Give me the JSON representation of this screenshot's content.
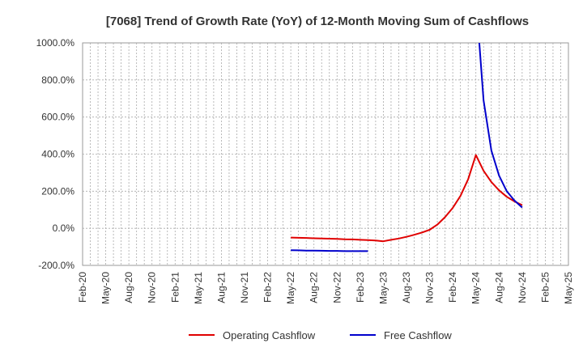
{
  "chart_data": {
    "type": "line",
    "title": "[7068]  Trend of Growth Rate (YoY) of 12-Month Moving Sum of Cashflows",
    "xlabel": "",
    "ylabel": "",
    "ylim": [
      -200,
      1000
    ],
    "y_ticks": [
      "1000.0%",
      "800.0%",
      "600.0%",
      "400.0%",
      "200.0%",
      "0.0%",
      "-200.0%"
    ],
    "x_ticks": [
      "Feb-20",
      "May-20",
      "Aug-20",
      "Nov-20",
      "Feb-21",
      "May-21",
      "Aug-21",
      "Nov-21",
      "Feb-22",
      "May-22",
      "Aug-22",
      "Nov-22",
      "Feb-23",
      "May-23",
      "Aug-23",
      "Nov-23",
      "Feb-24",
      "May-24",
      "Aug-24",
      "Nov-24",
      "Feb-25",
      "May-25"
    ],
    "grid": true,
    "legend_position": "bottom",
    "series": [
      {
        "name": "Operating Cashflow",
        "color": "#e00000",
        "x": [
          "May-22",
          "Jun-22",
          "Jul-22",
          "Aug-22",
          "Sep-22",
          "Oct-22",
          "Nov-22",
          "Dec-22",
          "Jan-23",
          "Feb-23",
          "Mar-23",
          "Apr-23",
          "May-23",
          "Jun-23",
          "Jul-23",
          "Aug-23",
          "Sep-23",
          "Oct-23",
          "Nov-23",
          "Dec-23",
          "Jan-24",
          "Feb-24",
          "Mar-24",
          "Apr-24",
          "May-24",
          "Jun-24",
          "Jul-24",
          "Aug-24",
          "Sep-24",
          "Oct-24",
          "Nov-24"
        ],
        "values": [
          -50,
          -51,
          -52,
          -54,
          -55,
          -56,
          -57,
          -59,
          -60,
          -62,
          -64,
          -66,
          -70,
          -62,
          -55,
          -46,
          -35,
          -23,
          -8,
          20,
          60,
          110,
          175,
          265,
          395,
          310,
          250,
          205,
          170,
          145,
          125
        ]
      },
      {
        "name": "Free Cashflow",
        "color": "#0000cc",
        "x": [
          "May-22",
          "Jun-22",
          "Jul-22",
          "Aug-22",
          "Sep-22",
          "Oct-22",
          "Nov-22",
          "Dec-22",
          "Jan-23",
          "Feb-23",
          "Mar-23",
          "Apr-23",
          "May-23",
          "Jun-23",
          "Jul-23",
          "Aug-23",
          "Sep-23",
          "Oct-23",
          "Nov-23",
          "Dec-23",
          "Jan-24",
          "Feb-24",
          "Mar-24",
          "Apr-24",
          "May-24",
          "Jun-24",
          "Jul-24",
          "Aug-24",
          "Sep-24",
          "Oct-24",
          "Nov-24"
        ],
        "values": [
          -118,
          -119,
          -120,
          -120,
          -121,
          -122,
          -122,
          -123,
          -123,
          -123,
          -123,
          null,
          null,
          null,
          null,
          null,
          null,
          null,
          null,
          null,
          null,
          null,
          null,
          null,
          1250,
          690,
          420,
          285,
          200,
          150,
          112
        ]
      }
    ]
  }
}
